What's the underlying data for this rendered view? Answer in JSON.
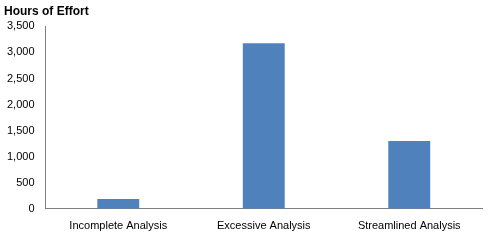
{
  "chart_data": {
    "type": "bar",
    "ylabel": "Hours of Effort",
    "categories": [
      "Incomplete Analysis",
      "Excessive Analysis",
      "Streamlined Analysis"
    ],
    "values": [
      190,
      3175,
      1300
    ],
    "color": "#4f81bd",
    "ylim": [
      0,
      3500
    ],
    "yticks": [
      0,
      500,
      {
        "value": 1000,
        "label": "1,000"
      },
      {
        "value": 1500,
        "label": "1,500"
      },
      {
        "value": 2000,
        "label": "2,000"
      },
      {
        "value": 2500,
        "label": "2,500"
      },
      {
        "value": 3000,
        "label": "3,000"
      },
      {
        "value": 3500,
        "label": "3,500"
      }
    ],
    "grid": false
  }
}
